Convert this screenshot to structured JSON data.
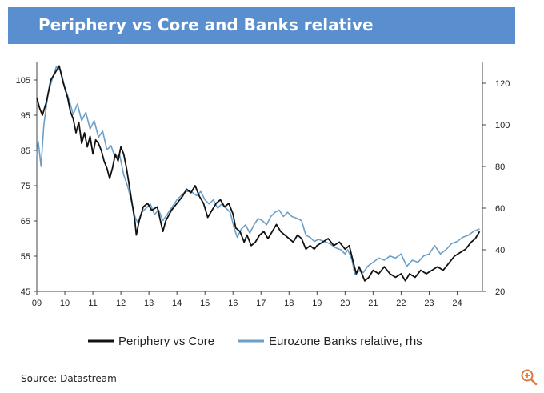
{
  "header": {
    "title": "Periphery vs Core and Banks relative"
  },
  "source": "Source: Datastream",
  "icons": {
    "zoom": "zoom-in-icon"
  },
  "colors": {
    "title_bar": "#5a8fcf",
    "periphery": "#111111",
    "banks": "#6a9fc9",
    "zoom_icon": "#e07a3c"
  },
  "chart_data": {
    "type": "line",
    "x_ticks": [
      "09",
      "10",
      "11",
      "12",
      "13",
      "14",
      "15",
      "16",
      "17",
      "18",
      "19",
      "20",
      "21",
      "22",
      "23",
      "24"
    ],
    "y_left_ticks": [
      "105",
      "95",
      "85",
      "75",
      "65",
      "55",
      "45"
    ],
    "y_right_ticks": [
      "120",
      "100",
      "80",
      "60",
      "40",
      "20"
    ],
    "ylim_left": [
      45,
      110
    ],
    "ylim_right": [
      20,
      130
    ],
    "xlim": [
      2009.0,
      2024.9
    ],
    "legend": [
      "Periphery vs Core",
      "Eurozone Banks relative, rhs"
    ],
    "legend_position": "bottom",
    "grid": false,
    "series": [
      {
        "name": "Periphery vs Core",
        "axis": "left",
        "points": [
          [
            2009.0,
            100
          ],
          [
            2009.1,
            97
          ],
          [
            2009.2,
            95
          ],
          [
            2009.35,
            99
          ],
          [
            2009.5,
            105
          ],
          [
            2009.65,
            107
          ],
          [
            2009.8,
            109
          ],
          [
            2009.95,
            104
          ],
          [
            2010.1,
            100
          ],
          [
            2010.2,
            96
          ],
          [
            2010.3,
            94
          ],
          [
            2010.4,
            90
          ],
          [
            2010.5,
            93
          ],
          [
            2010.6,
            87
          ],
          [
            2010.7,
            90
          ],
          [
            2010.8,
            86
          ],
          [
            2010.9,
            89
          ],
          [
            2011.0,
            84
          ],
          [
            2011.1,
            88
          ],
          [
            2011.2,
            87
          ],
          [
            2011.3,
            85
          ],
          [
            2011.4,
            82
          ],
          [
            2011.5,
            80
          ],
          [
            2011.6,
            77
          ],
          [
            2011.7,
            80
          ],
          [
            2011.8,
            84
          ],
          [
            2011.9,
            82
          ],
          [
            2012.0,
            86
          ],
          [
            2012.1,
            84
          ],
          [
            2012.2,
            80
          ],
          [
            2012.3,
            75
          ],
          [
            2012.4,
            70
          ],
          [
            2012.5,
            65
          ],
          [
            2012.55,
            61
          ],
          [
            2012.65,
            65
          ],
          [
            2012.8,
            69
          ],
          [
            2012.95,
            70
          ],
          [
            2013.1,
            68
          ],
          [
            2013.3,
            69
          ],
          [
            2013.5,
            62
          ],
          [
            2013.6,
            65
          ],
          [
            2013.8,
            68
          ],
          [
            2014.0,
            70
          ],
          [
            2014.2,
            72
          ],
          [
            2014.35,
            74
          ],
          [
            2014.5,
            73
          ],
          [
            2014.65,
            75
          ],
          [
            2014.8,
            72
          ],
          [
            2014.95,
            70
          ],
          [
            2015.1,
            66
          ],
          [
            2015.25,
            68
          ],
          [
            2015.4,
            70
          ],
          [
            2015.55,
            71
          ],
          [
            2015.7,
            69
          ],
          [
            2015.85,
            70
          ],
          [
            2016.0,
            67
          ],
          [
            2016.1,
            63
          ],
          [
            2016.25,
            62
          ],
          [
            2016.4,
            59
          ],
          [
            2016.5,
            61
          ],
          [
            2016.65,
            58
          ],
          [
            2016.8,
            59
          ],
          [
            2016.95,
            61
          ],
          [
            2017.1,
            62
          ],
          [
            2017.25,
            60
          ],
          [
            2017.4,
            62
          ],
          [
            2017.55,
            64
          ],
          [
            2017.7,
            62
          ],
          [
            2017.85,
            61
          ],
          [
            2018.0,
            60
          ],
          [
            2018.15,
            59
          ],
          [
            2018.3,
            61
          ],
          [
            2018.45,
            60
          ],
          [
            2018.6,
            57
          ],
          [
            2018.75,
            58
          ],
          [
            2018.9,
            57
          ],
          [
            2019.0,
            58
          ],
          [
            2019.2,
            59
          ],
          [
            2019.4,
            60
          ],
          [
            2019.6,
            58
          ],
          [
            2019.8,
            59
          ],
          [
            2020.0,
            57
          ],
          [
            2020.15,
            58
          ],
          [
            2020.3,
            53
          ],
          [
            2020.4,
            50
          ],
          [
            2020.5,
            52
          ],
          [
            2020.6,
            50
          ],
          [
            2020.7,
            48
          ],
          [
            2020.85,
            49
          ],
          [
            2021.0,
            51
          ],
          [
            2021.2,
            50
          ],
          [
            2021.4,
            52
          ],
          [
            2021.6,
            50
          ],
          [
            2021.8,
            49
          ],
          [
            2022.0,
            50
          ],
          [
            2022.15,
            48
          ],
          [
            2022.3,
            50
          ],
          [
            2022.5,
            49
          ],
          [
            2022.7,
            51
          ],
          [
            2022.9,
            50
          ],
          [
            2023.1,
            51
          ],
          [
            2023.3,
            52
          ],
          [
            2023.5,
            51
          ],
          [
            2023.7,
            53
          ],
          [
            2023.9,
            55
          ],
          [
            2024.1,
            56
          ],
          [
            2024.3,
            57
          ],
          [
            2024.5,
            59
          ],
          [
            2024.65,
            60
          ],
          [
            2024.8,
            62
          ]
        ]
      },
      {
        "name": "Eurozone Banks relative, rhs",
        "axis": "right",
        "points": [
          [
            2009.0,
            85
          ],
          [
            2009.05,
            92
          ],
          [
            2009.15,
            80
          ],
          [
            2009.25,
            100
          ],
          [
            2009.4,
            115
          ],
          [
            2009.55,
            122
          ],
          [
            2009.7,
            128
          ],
          [
            2009.85,
            126
          ],
          [
            2010.0,
            118
          ],
          [
            2010.15,
            112
          ],
          [
            2010.3,
            105
          ],
          [
            2010.45,
            110
          ],
          [
            2010.6,
            102
          ],
          [
            2010.75,
            106
          ],
          [
            2010.9,
            98
          ],
          [
            2011.05,
            102
          ],
          [
            2011.2,
            94
          ],
          [
            2011.35,
            97
          ],
          [
            2011.5,
            88
          ],
          [
            2011.65,
            90
          ],
          [
            2011.8,
            84
          ],
          [
            2011.95,
            86
          ],
          [
            2012.1,
            76
          ],
          [
            2012.25,
            70
          ],
          [
            2012.4,
            62
          ],
          [
            2012.5,
            56
          ],
          [
            2012.6,
            53
          ],
          [
            2012.75,
            58
          ],
          [
            2012.9,
            60
          ],
          [
            2013.05,
            62
          ],
          [
            2013.2,
            57
          ],
          [
            2013.35,
            59
          ],
          [
            2013.5,
            54
          ],
          [
            2013.65,
            57
          ],
          [
            2013.8,
            60
          ],
          [
            2014.0,
            64
          ],
          [
            2014.15,
            66
          ],
          [
            2014.3,
            68
          ],
          [
            2014.5,
            68
          ],
          [
            2014.7,
            66
          ],
          [
            2014.85,
            68
          ],
          [
            2015.0,
            64
          ],
          [
            2015.15,
            62
          ],
          [
            2015.3,
            64
          ],
          [
            2015.45,
            60
          ],
          [
            2015.6,
            62
          ],
          [
            2015.75,
            60
          ],
          [
            2015.9,
            58
          ],
          [
            2016.05,
            50
          ],
          [
            2016.15,
            46
          ],
          [
            2016.3,
            50
          ],
          [
            2016.45,
            52
          ],
          [
            2016.6,
            48
          ],
          [
            2016.75,
            52
          ],
          [
            2016.9,
            55
          ],
          [
            2017.05,
            54
          ],
          [
            2017.2,
            52
          ],
          [
            2017.35,
            56
          ],
          [
            2017.5,
            58
          ],
          [
            2017.65,
            59
          ],
          [
            2017.8,
            56
          ],
          [
            2017.95,
            58
          ],
          [
            2018.1,
            56
          ],
          [
            2018.3,
            55
          ],
          [
            2018.45,
            54
          ],
          [
            2018.6,
            47
          ],
          [
            2018.75,
            46
          ],
          [
            2018.9,
            44
          ],
          [
            2019.05,
            45
          ],
          [
            2019.25,
            44
          ],
          [
            2019.45,
            43
          ],
          [
            2019.65,
            41
          ],
          [
            2019.85,
            40
          ],
          [
            2020.0,
            38
          ],
          [
            2020.1,
            40
          ],
          [
            2020.25,
            35
          ],
          [
            2020.35,
            28
          ],
          [
            2020.5,
            30
          ],
          [
            2020.65,
            29
          ],
          [
            2020.8,
            32
          ],
          [
            2021.0,
            34
          ],
          [
            2021.2,
            36
          ],
          [
            2021.4,
            35
          ],
          [
            2021.6,
            37
          ],
          [
            2021.8,
            36
          ],
          [
            2022.0,
            38
          ],
          [
            2022.2,
            32
          ],
          [
            2022.4,
            35
          ],
          [
            2022.6,
            34
          ],
          [
            2022.8,
            37
          ],
          [
            2023.0,
            38
          ],
          [
            2023.2,
            42
          ],
          [
            2023.4,
            38
          ],
          [
            2023.6,
            40
          ],
          [
            2023.8,
            43
          ],
          [
            2024.0,
            44
          ],
          [
            2024.2,
            46
          ],
          [
            2024.4,
            47
          ],
          [
            2024.6,
            49
          ],
          [
            2024.8,
            50
          ]
        ]
      }
    ]
  }
}
